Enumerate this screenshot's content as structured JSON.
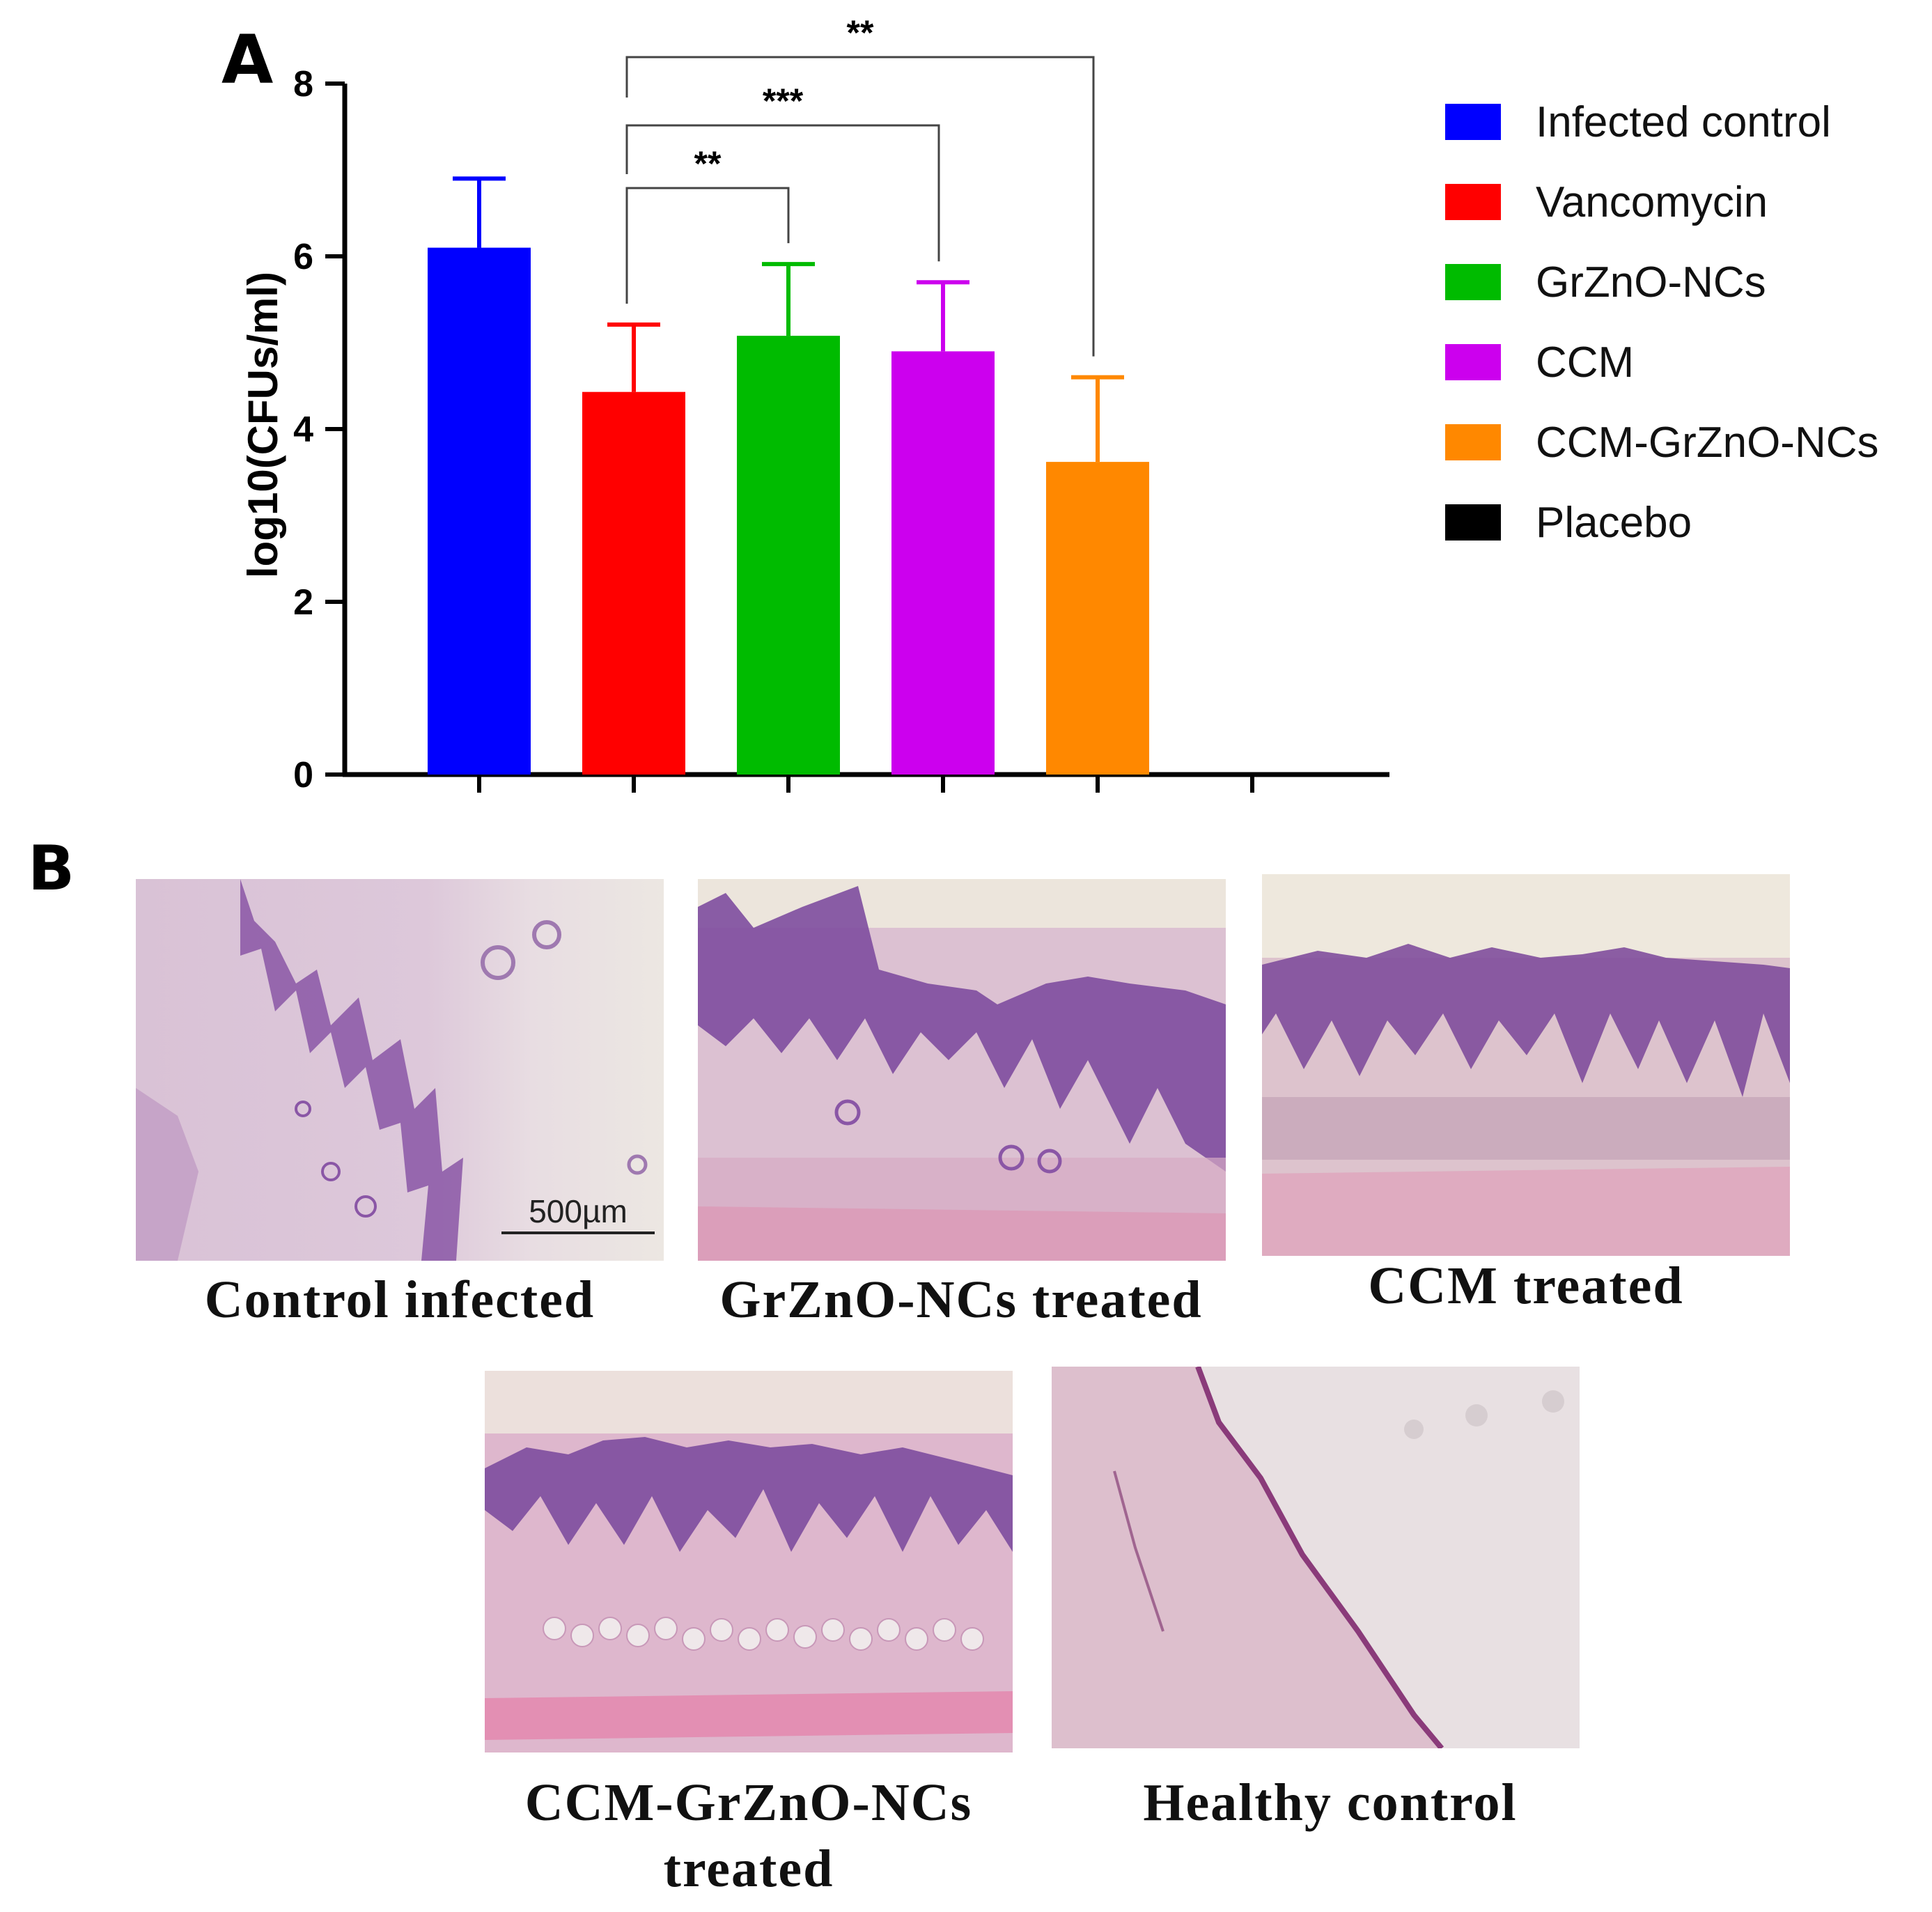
{
  "panel_a_label": "A",
  "panel_b_label": "B",
  "chart_data": {
    "type": "bar",
    "ylabel": "log10(CFUs/ml)",
    "xlabel": "",
    "ylim": [
      0,
      8
    ],
    "yticks": [
      "0",
      "2",
      "4",
      "6",
      "8"
    ],
    "categories": [
      "Infected control",
      "Vancomycin",
      "GrZnO-NCs",
      "CCM",
      "CCM-GrZnO-NCs",
      "Placebo"
    ],
    "values": [
      6.1,
      4.43,
      5.08,
      4.9,
      3.62,
      0
    ],
    "errors": [
      0.8,
      0.78,
      0.83,
      0.8,
      0.98,
      0
    ],
    "colors": [
      "#0000ff",
      "#ff0000",
      "#00bb00",
      "#cc00ee",
      "#ff8800",
      "#000000"
    ],
    "significance": [
      {
        "from": "Vancomycin",
        "to": "GrZnO-NCs",
        "label": "**"
      },
      {
        "from": "Vancomycin",
        "to": "CCM",
        "label": "***"
      },
      {
        "from": "Vancomycin",
        "to": "CCM-GrZnO-NCs",
        "label": "**"
      }
    ],
    "legend_position": "right"
  },
  "micrographs": {
    "scale_bar": "500µm",
    "captions": {
      "control_infected": "Control infected",
      "grzno_treated": "GrZnO-NCs  treated",
      "ccm_treated": "CCM treated",
      "ccm_grzno_line1": "CCM-GrZnO-NCs",
      "ccm_grzno_line2": "treated",
      "healthy_control": "Healthy control"
    }
  }
}
